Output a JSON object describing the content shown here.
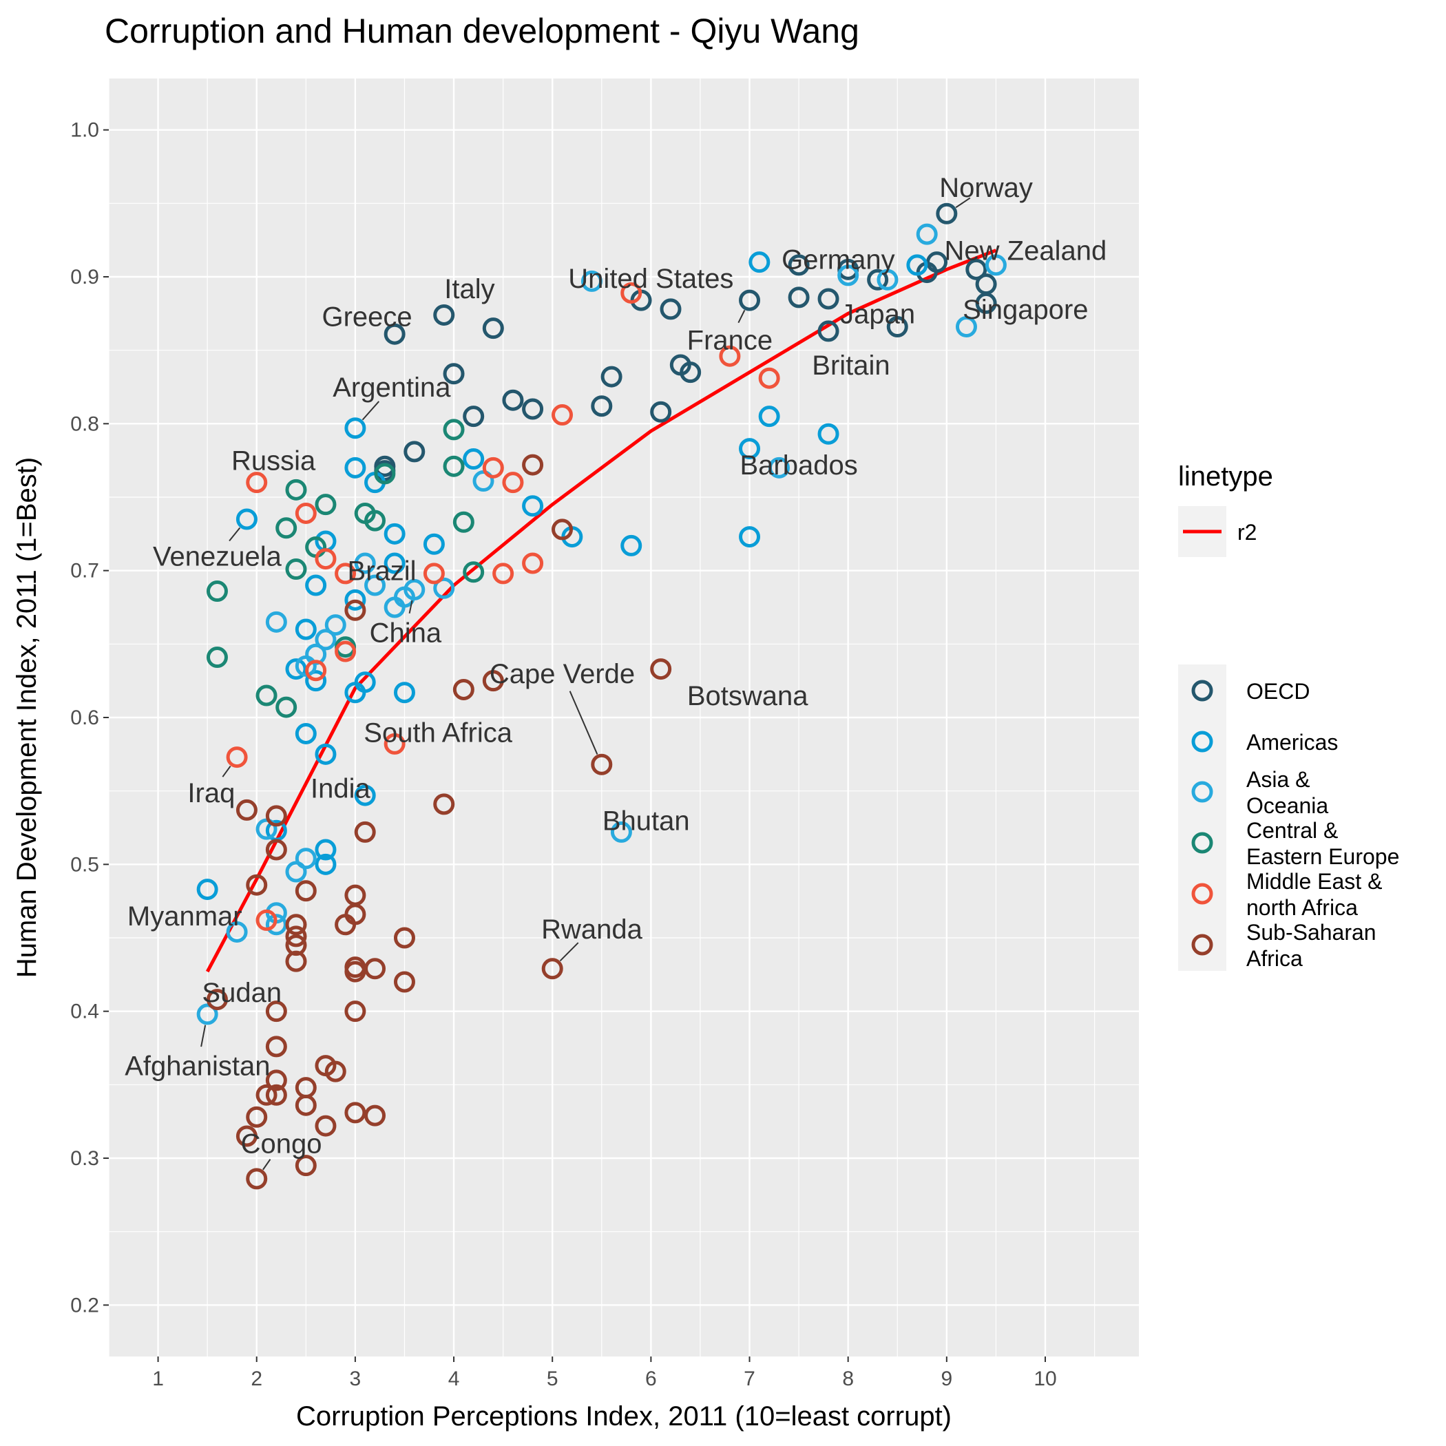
{
  "chart_data": {
    "type": "scatter",
    "title": "Corruption and Human development - Qiyu Wang",
    "xlabel": "Corruption Perceptions Index, 2011 (10=least corrupt)",
    "ylabel": "Human Development Index, 2011 (1=Best)",
    "xlim": [
      0.5,
      10.95
    ],
    "ylim": [
      0.165,
      1.035
    ],
    "x_ticks": [
      1,
      2,
      3,
      4,
      5,
      6,
      7,
      8,
      9,
      10
    ],
    "y_ticks": [
      0.2,
      0.3,
      0.4,
      0.5,
      0.6,
      0.7,
      0.8,
      0.9,
      1.0
    ],
    "y_tick_labels": [
      "0.2",
      "0.3",
      "0.4",
      "0.5",
      "0.6",
      "0.7",
      "0.8",
      "0.9",
      "1.0"
    ],
    "grid": true,
    "colors": {
      "panel": "#ebebeb",
      "grid": "#ffffff",
      "trend": "#ff0000"
    },
    "trend_line": {
      "name": "r2",
      "formula": "y = 0.4 + 0.23 * ln(x) for x from 1.5 to 9.5 (approx.)",
      "x_range": [
        1.5,
        9.5
      ],
      "points": [
        [
          1.5,
          0.427
        ],
        [
          2.0,
          0.49
        ],
        [
          3.0,
          0.62
        ],
        [
          4.0,
          0.69
        ],
        [
          5.0,
          0.745
        ],
        [
          6.0,
          0.795
        ],
        [
          7.0,
          0.835
        ],
        [
          8.0,
          0.875
        ],
        [
          9.0,
          0.905
        ],
        [
          9.5,
          0.918
        ]
      ]
    },
    "legend_linetype": {
      "title": "linetype",
      "entries": [
        "r2"
      ]
    },
    "legend_position": "right",
    "series": [
      {
        "name": "OECD",
        "color": "#24576d",
        "points": [
          [
            9.0,
            0.943
          ],
          [
            8.9,
            0.91
          ],
          [
            9.3,
            0.905
          ],
          [
            9.4,
            0.895
          ],
          [
            9.4,
            0.882
          ],
          [
            8.8,
            0.903
          ],
          [
            8.3,
            0.898
          ],
          [
            8.0,
            0.905
          ],
          [
            7.5,
            0.908
          ],
          [
            7.5,
            0.886
          ],
          [
            7.8,
            0.885
          ],
          [
            7.8,
            0.863
          ],
          [
            8.5,
            0.866
          ],
          [
            7.0,
            0.884
          ],
          [
            5.9,
            0.884
          ],
          [
            6.2,
            0.878
          ],
          [
            6.3,
            0.84
          ],
          [
            6.4,
            0.835
          ],
          [
            5.6,
            0.832
          ],
          [
            5.5,
            0.812
          ],
          [
            6.1,
            0.808
          ],
          [
            4.6,
            0.816
          ],
          [
            4.8,
            0.81
          ],
          [
            4.2,
            0.805
          ],
          [
            4.0,
            0.834
          ],
          [
            3.9,
            0.874
          ],
          [
            4.4,
            0.865
          ],
          [
            3.4,
            0.861
          ],
          [
            3.6,
            0.781
          ],
          [
            3.3,
            0.771
          ],
          [
            3.3,
            0.768
          ]
        ]
      },
      {
        "name": "Americas",
        "color": "#099dd7",
        "points": [
          [
            7.1,
            0.91
          ],
          [
            8.7,
            0.908
          ],
          [
            7.2,
            0.805
          ],
          [
            7.8,
            0.793
          ],
          [
            7.0,
            0.783
          ],
          [
            7.0,
            0.723
          ],
          [
            5.8,
            0.717
          ],
          [
            5.2,
            0.723
          ],
          [
            4.8,
            0.744
          ],
          [
            4.2,
            0.776
          ],
          [
            3.0,
            0.797
          ],
          [
            3.0,
            0.77
          ],
          [
            3.2,
            0.76
          ],
          [
            3.8,
            0.718
          ],
          [
            3.4,
            0.725
          ],
          [
            3.4,
            0.705
          ],
          [
            3.0,
            0.68
          ],
          [
            3.5,
            0.617
          ],
          [
            3.0,
            0.617
          ],
          [
            3.1,
            0.624
          ],
          [
            2.7,
            0.72
          ],
          [
            2.6,
            0.69
          ],
          [
            2.5,
            0.66
          ],
          [
            2.4,
            0.633
          ],
          [
            2.6,
            0.625
          ],
          [
            2.7,
            0.575
          ],
          [
            2.5,
            0.589
          ],
          [
            1.9,
            0.735
          ],
          [
            3.1,
            0.547
          ],
          [
            2.7,
            0.51
          ],
          [
            2.2,
            0.523
          ],
          [
            2.7,
            0.5
          ],
          [
            1.5,
            0.483
          ]
        ]
      },
      {
        "name": "Asia & Oceania",
        "color": "#28aade",
        "points": [
          [
            9.5,
            0.908
          ],
          [
            9.2,
            0.866
          ],
          [
            8.8,
            0.929
          ],
          [
            8.0,
            0.901
          ],
          [
            8.4,
            0.898
          ],
          [
            5.4,
            0.897
          ],
          [
            7.3,
            0.77
          ],
          [
            4.3,
            0.761
          ],
          [
            3.1,
            0.705
          ],
          [
            3.2,
            0.69
          ],
          [
            3.4,
            0.675
          ],
          [
            3.6,
            0.687
          ],
          [
            3.9,
            0.688
          ],
          [
            3.5,
            0.682
          ],
          [
            2.8,
            0.663
          ],
          [
            2.7,
            0.653
          ],
          [
            2.6,
            0.643
          ],
          [
            2.5,
            0.635
          ],
          [
            2.2,
            0.665
          ],
          [
            5.7,
            0.522
          ],
          [
            2.4,
            0.495
          ],
          [
            2.5,
            0.504
          ],
          [
            2.1,
            0.524
          ],
          [
            2.2,
            0.467
          ],
          [
            2.2,
            0.459
          ],
          [
            1.8,
            0.454
          ],
          [
            1.5,
            0.398
          ]
        ]
      },
      {
        "name": "Central & Eastern Europe",
        "color": "#1b8774",
        "points": [
          [
            4.0,
            0.796
          ],
          [
            4.0,
            0.771
          ],
          [
            3.3,
            0.766
          ],
          [
            4.1,
            0.733
          ],
          [
            3.1,
            0.739
          ],
          [
            3.2,
            0.734
          ],
          [
            2.7,
            0.745
          ],
          [
            2.4,
            0.755
          ],
          [
            2.3,
            0.729
          ],
          [
            2.6,
            0.716
          ],
          [
            2.4,
            0.701
          ],
          [
            4.2,
            0.699
          ],
          [
            2.9,
            0.648
          ],
          [
            1.6,
            0.686
          ],
          [
            1.6,
            0.641
          ],
          [
            2.1,
            0.615
          ],
          [
            2.3,
            0.607
          ]
        ]
      },
      {
        "name": "Middle East & north Africa",
        "color": "#f0543b",
        "points": [
          [
            5.8,
            0.889
          ],
          [
            6.8,
            0.846
          ],
          [
            7.2,
            0.831
          ],
          [
            5.1,
            0.806
          ],
          [
            4.4,
            0.77
          ],
          [
            4.6,
            0.76
          ],
          [
            2.0,
            0.76
          ],
          [
            2.5,
            0.739
          ],
          [
            2.7,
            0.708
          ],
          [
            4.8,
            0.705
          ],
          [
            4.5,
            0.698
          ],
          [
            3.8,
            0.698
          ],
          [
            2.9,
            0.698
          ],
          [
            2.9,
            0.645
          ],
          [
            2.6,
            0.632
          ],
          [
            3.4,
            0.582
          ],
          [
            1.8,
            0.573
          ],
          [
            2.1,
            0.462
          ]
        ]
      },
      {
        "name": "Sub-Saharan Africa",
        "color": "#953f2b",
        "points": [
          [
            4.8,
            0.772
          ],
          [
            5.1,
            0.728
          ],
          [
            3.0,
            0.673
          ],
          [
            6.1,
            0.633
          ],
          [
            4.4,
            0.625
          ],
          [
            4.1,
            0.619
          ],
          [
            5.5,
            0.568
          ],
          [
            3.9,
            0.541
          ],
          [
            3.1,
            0.522
          ],
          [
            1.9,
            0.537
          ],
          [
            2.2,
            0.533
          ],
          [
            2.2,
            0.51
          ],
          [
            2.0,
            0.486
          ],
          [
            2.5,
            0.482
          ],
          [
            3.0,
            0.479
          ],
          [
            3.0,
            0.466
          ],
          [
            2.9,
            0.459
          ],
          [
            2.4,
            0.459
          ],
          [
            2.4,
            0.451
          ],
          [
            2.4,
            0.445
          ],
          [
            2.4,
            0.434
          ],
          [
            3.5,
            0.45
          ],
          [
            3.0,
            0.43
          ],
          [
            3.0,
            0.427
          ],
          [
            3.2,
            0.429
          ],
          [
            5.0,
            0.429
          ],
          [
            3.5,
            0.42
          ],
          [
            1.6,
            0.408
          ],
          [
            2.2,
            0.4
          ],
          [
            3.0,
            0.4
          ],
          [
            2.2,
            0.376
          ],
          [
            2.7,
            0.363
          ],
          [
            2.8,
            0.359
          ],
          [
            2.1,
            0.343
          ],
          [
            2.2,
            0.343
          ],
          [
            2.2,
            0.353
          ],
          [
            2.5,
            0.348
          ],
          [
            2.5,
            0.336
          ],
          [
            2.0,
            0.328
          ],
          [
            3.0,
            0.331
          ],
          [
            3.2,
            0.329
          ],
          [
            1.9,
            0.315
          ],
          [
            2.7,
            0.322
          ],
          [
            2.5,
            0.295
          ],
          [
            2.0,
            0.286
          ]
        ]
      }
    ],
    "annotations": [
      {
        "text": "Norway",
        "x": 9.0,
        "y": 0.943,
        "lx": 9.4,
        "ly": 0.961,
        "seg": true
      },
      {
        "text": "Germany",
        "x": 7.5,
        "y": 0.908,
        "lx": 7.9,
        "ly": 0.912,
        "seg": false
      },
      {
        "text": "New Zealand",
        "x": 9.5,
        "y": 0.908,
        "lx": 9.8,
        "ly": 0.918,
        "seg": false
      },
      {
        "text": "Italy",
        "x": 3.9,
        "y": 0.874,
        "lx": 4.16,
        "ly": 0.892,
        "seg": false
      },
      {
        "text": "United States",
        "x": 7.0,
        "y": 0.884,
        "lx": 6.0,
        "ly": 0.899,
        "seg": false
      },
      {
        "text": "Greece",
        "x": 3.4,
        "y": 0.861,
        "lx": 3.12,
        "ly": 0.873,
        "seg": false
      },
      {
        "text": "Japan",
        "x": 8.0,
        "y": 0.901,
        "lx": 8.3,
        "ly": 0.875,
        "seg": false
      },
      {
        "text": "Singapore",
        "x": 9.2,
        "y": 0.866,
        "lx": 9.8,
        "ly": 0.878,
        "seg": false
      },
      {
        "text": "France",
        "x": 7.0,
        "y": 0.884,
        "lx": 6.8,
        "ly": 0.857,
        "seg": true
      },
      {
        "text": "Britain",
        "x": 7.8,
        "y": 0.863,
        "lx": 8.03,
        "ly": 0.84,
        "seg": false
      },
      {
        "text": "Argentina",
        "x": 3.0,
        "y": 0.797,
        "lx": 3.37,
        "ly": 0.825,
        "seg": true
      },
      {
        "text": "Russia",
        "x": 2.4,
        "y": 0.755,
        "lx": 2.17,
        "ly": 0.775,
        "seg": false
      },
      {
        "text": "Barbados",
        "x": 7.8,
        "y": 0.793,
        "lx": 7.5,
        "ly": 0.772,
        "seg": false
      },
      {
        "text": "Venezuela",
        "x": 1.9,
        "y": 0.735,
        "lx": 1.6,
        "ly": 0.71,
        "seg": true
      },
      {
        "text": "Brazil",
        "x": 3.0,
        "y": 0.718,
        "lx": 3.27,
        "ly": 0.7,
        "seg": false
      },
      {
        "text": "China",
        "x": 3.6,
        "y": 0.687,
        "lx": 3.51,
        "ly": 0.658,
        "seg": true
      },
      {
        "text": "Cape Verde",
        "x": 5.5,
        "y": 0.568,
        "lx": 5.1,
        "ly": 0.63,
        "seg": true
      },
      {
        "text": "Botswana",
        "x": 6.1,
        "y": 0.633,
        "lx": 6.98,
        "ly": 0.615,
        "seg": false
      },
      {
        "text": "South Africa",
        "x": 3.1,
        "y": 0.619,
        "lx": 3.84,
        "ly": 0.59,
        "seg": false
      },
      {
        "text": "India",
        "x": 3.1,
        "y": 0.547,
        "lx": 2.85,
        "ly": 0.552,
        "seg": false
      },
      {
        "text": "Iraq",
        "x": 1.8,
        "y": 0.573,
        "lx": 1.54,
        "ly": 0.549,
        "seg": true
      },
      {
        "text": "Bhutan",
        "x": 5.7,
        "y": 0.522,
        "lx": 5.95,
        "ly": 0.53,
        "seg": false
      },
      {
        "text": "Myanmar",
        "x": 1.5,
        "y": 0.483,
        "lx": 1.27,
        "ly": 0.465,
        "seg": false
      },
      {
        "text": "Rwanda",
        "x": 5.0,
        "y": 0.429,
        "lx": 5.4,
        "ly": 0.456,
        "seg": true
      },
      {
        "text": "Sudan",
        "x": 2.3,
        "y": 0.437,
        "lx": 1.85,
        "ly": 0.413,
        "seg": false
      },
      {
        "text": "Afghanistan",
        "x": 1.5,
        "y": 0.398,
        "lx": 1.4,
        "ly": 0.363,
        "seg": true
      },
      {
        "text": "Congo",
        "x": 2.0,
        "y": 0.286,
        "lx": 2.25,
        "ly": 0.31,
        "seg": true
      }
    ]
  }
}
